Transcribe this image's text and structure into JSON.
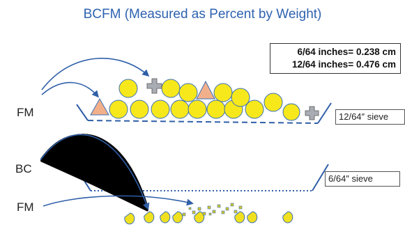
{
  "title": "BCFM (Measured as Percent by Weight)",
  "conversions": [
    "6/64 inches= 0.238 cm",
    "12/64 inches= 0.476 cm"
  ],
  "labels": {
    "fm_top": "FM",
    "bc": "BC",
    "fm_bottom": "FM"
  },
  "sieves": {
    "upper": "12/64″ sieve",
    "lower": "6/64″ sieve"
  },
  "colors": {
    "kernel": "#f7e81c",
    "kernel_outline": "#3a6fb5",
    "triangle": "#f2b08a",
    "cross": "#a9acb3",
    "broken_corn": "#f0e020",
    "fines": "#d4c72a",
    "arrow": "#2f5fa8",
    "title": "#2e62b0"
  }
}
